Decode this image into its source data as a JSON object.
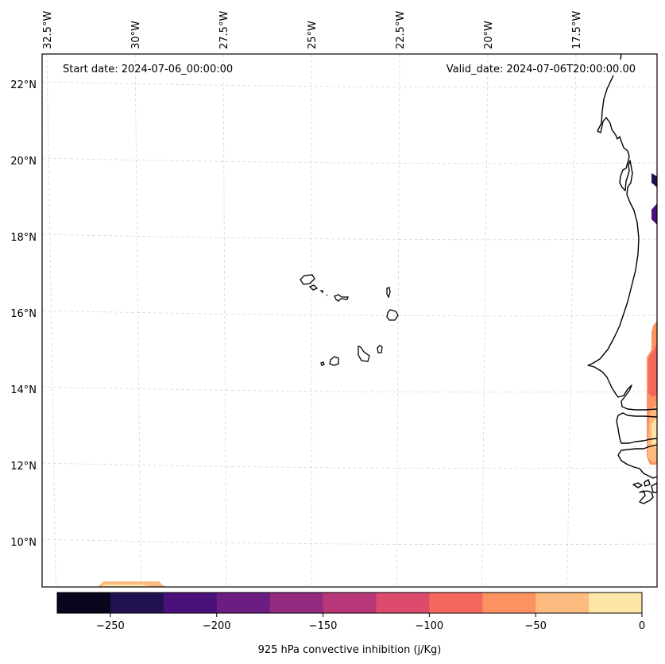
{
  "chart_data": {
    "type": "heatmap",
    "title": "",
    "annotations": {
      "start_date": "Start date: 2024-07-06_00:00:00",
      "valid_date": "Valid_date: 2024-07-06T20:00:00.00"
    },
    "map": {
      "lon_range": [
        -33,
        -15.8
      ],
      "lat_range": [
        8.8,
        22.8
      ],
      "lon_ticks": [
        -32.5,
        -30,
        -27.5,
        -25,
        -22.5,
        -20,
        -17.5
      ],
      "lon_tick_labels": [
        "32.5°W",
        "30°W",
        "27.5°W",
        "25°W",
        "22.5°W",
        "20°W",
        "17.5°W"
      ],
      "lat_ticks": [
        22,
        20,
        18,
        16,
        14,
        12,
        10
      ],
      "lat_tick_labels": [
        "22°N",
        "20°N",
        "18°N",
        "16°N",
        "14°N",
        "12°N",
        "10°N"
      ],
      "gridlines": true,
      "features": [
        "Cape Verde islands",
        "West African coastline (Mauritania, Senegal, Gambia, Guinea-Bissau)"
      ]
    },
    "colorbar": {
      "label": "925 hPa convective inhibition (j/Kg)",
      "orientation": "horizontal",
      "placement": "bottom",
      "range": [
        -275,
        0
      ],
      "levels": [
        -275,
        -250,
        -225,
        -200,
        -175,
        -150,
        -125,
        -100,
        -75,
        -50,
        -25,
        0
      ],
      "ticks": [
        -250,
        -200,
        -150,
        -100,
        -50,
        0
      ],
      "tick_labels": [
        "−250",
        "−200",
        "−150",
        "−100",
        "−50",
        "0"
      ],
      "colors": [
        "#07061c",
        "#221150",
        "#4a1079",
        "#6c1d81",
        "#922a7f",
        "#b73779",
        "#dc4a6c",
        "#f3675c",
        "#fc9262",
        "#febb80",
        "#fde6a7"
      ]
    },
    "shaded_regions": [
      {
        "area": "east edge near 19.5°N",
        "value_range": [
          -250,
          -225
        ]
      },
      {
        "area": "east edge near 18.5°N",
        "value_range": [
          -225,
          -200
        ]
      },
      {
        "area": "east edge 11.5°N-15.5°N (Senegal coast)",
        "value_range": [
          -100,
          0
        ]
      },
      {
        "area": "south edge near 31°W, 9°N",
        "value_range": [
          -50,
          0
        ]
      }
    ]
  }
}
